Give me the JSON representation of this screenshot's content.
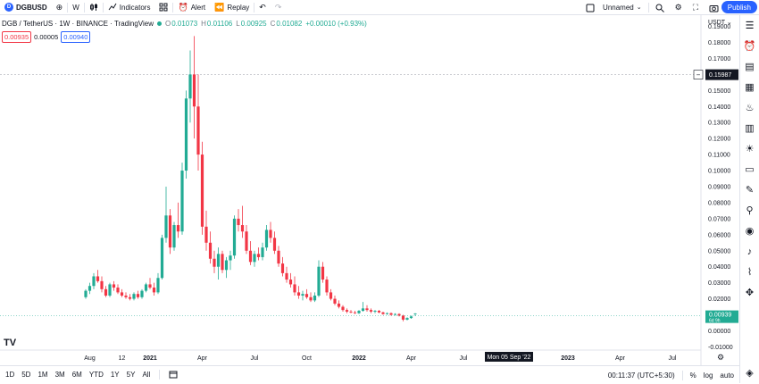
{
  "topbar": {
    "symbol": "DGBUSD",
    "symbol_logo": "D",
    "interval": "W",
    "indicators_label": "Indicators",
    "alert_label": "Alert",
    "replay_label": "Replay",
    "layout_name": "Unnamed",
    "publish_label": "Publish"
  },
  "legend": {
    "title": "DGB / TetherUS · 1W · BINANCE · TradingView",
    "o_label": "O",
    "o": "0.01073",
    "h_label": "H",
    "h": "0.01106",
    "l_label": "L",
    "l": "0.00925",
    "c_label": "C",
    "c": "0.01082",
    "change": "+0.00010 (+0.93%)"
  },
  "pricebox": {
    "sell": "0.00935",
    "spread": "0.00005",
    "buy": "0.00940"
  },
  "price_axis": {
    "currency": "USDT",
    "crosshair_price": "0.15987",
    "last_price": "0.00939",
    "last_price_countdown": "6d 9h"
  },
  "time_axis": {
    "crosshair_date": "Mon 05 Sep '22"
  },
  "bottombar": {
    "ranges": [
      "1D",
      "5D",
      "1M",
      "3M",
      "6M",
      "YTD",
      "1Y",
      "5Y",
      "All"
    ],
    "clock": "00:11:37 (UTC+5:30)",
    "percent_label": "%",
    "log_label": "log",
    "auto_label": "auto"
  },
  "colors": {
    "up": "#22ab94",
    "down": "#f23645",
    "accent": "#2962ff"
  },
  "chart_data": {
    "type": "candlestick",
    "y_ticks": [
      0.19,
      0.18,
      0.17,
      0.16,
      0.15,
      0.14,
      0.13,
      0.12,
      0.11,
      0.1,
      0.09,
      0.08,
      0.07,
      0.06,
      0.05,
      0.04,
      0.03,
      0.02,
      0.01,
      0.0,
      -0.01
    ],
    "y_tick_labels": [
      "0.19000",
      "0.18000",
      "0.17000",
      "0.16000",
      "0.15000",
      "0.14000",
      "0.13000",
      "0.12000",
      "0.11000",
      "0.10000",
      "0.09000",
      "0.08000",
      "0.07000",
      "0.06000",
      "0.05000",
      "0.04000",
      "0.03000",
      "0.02000",
      "0.01000",
      "0.00000",
      "-0.01000"
    ],
    "ylim": [
      -0.012,
      0.197
    ],
    "x_ticks": [
      {
        "label": "Aug",
        "index": 1
      },
      {
        "label": "12",
        "index": 9
      },
      {
        "label": "2021",
        "index": 16
      },
      {
        "label": "Apr",
        "index": 29
      },
      {
        "label": "Jul",
        "index": 42
      },
      {
        "label": "Oct",
        "index": 55
      },
      {
        "label": "2022",
        "index": 68
      },
      {
        "label": "Apr",
        "index": 81
      },
      {
        "label": "Jul",
        "index": 94
      },
      {
        "label": "2023",
        "index": 120
      },
      {
        "label": "Apr",
        "index": 133
      },
      {
        "label": "Jul",
        "index": 146
      }
    ],
    "candles": [
      [
        0.021,
        0.026,
        0.02,
        0.025
      ],
      [
        0.025,
        0.03,
        0.023,
        0.028
      ],
      [
        0.028,
        0.036,
        0.026,
        0.034
      ],
      [
        0.034,
        0.038,
        0.03,
        0.031
      ],
      [
        0.031,
        0.034,
        0.024,
        0.026
      ],
      [
        0.026,
        0.028,
        0.021,
        0.022
      ],
      [
        0.022,
        0.03,
        0.021,
        0.029
      ],
      [
        0.029,
        0.031,
        0.025,
        0.027
      ],
      [
        0.027,
        0.029,
        0.023,
        0.024
      ],
      [
        0.024,
        0.026,
        0.021,
        0.022
      ],
      [
        0.022,
        0.024,
        0.02,
        0.021
      ],
      [
        0.021,
        0.023,
        0.019,
        0.02
      ],
      [
        0.02,
        0.024,
        0.019,
        0.023
      ],
      [
        0.023,
        0.025,
        0.02,
        0.021
      ],
      [
        0.021,
        0.026,
        0.02,
        0.025
      ],
      [
        0.025,
        0.03,
        0.024,
        0.029
      ],
      [
        0.029,
        0.033,
        0.026,
        0.027
      ],
      [
        0.027,
        0.03,
        0.022,
        0.024
      ],
      [
        0.024,
        0.036,
        0.023,
        0.033
      ],
      [
        0.033,
        0.06,
        0.032,
        0.058
      ],
      [
        0.058,
        0.09,
        0.055,
        0.072
      ],
      [
        0.072,
        0.076,
        0.048,
        0.052
      ],
      [
        0.052,
        0.068,
        0.05,
        0.066
      ],
      [
        0.066,
        0.08,
        0.058,
        0.062
      ],
      [
        0.062,
        0.105,
        0.06,
        0.1
      ],
      [
        0.1,
        0.15,
        0.095,
        0.145
      ],
      [
        0.145,
        0.175,
        0.13,
        0.16
      ],
      [
        0.16,
        0.184,
        0.12,
        0.14
      ],
      [
        0.14,
        0.16,
        0.1,
        0.11
      ],
      [
        0.11,
        0.118,
        0.06,
        0.065
      ],
      [
        0.065,
        0.075,
        0.05,
        0.055
      ],
      [
        0.055,
        0.062,
        0.042,
        0.045
      ],
      [
        0.045,
        0.05,
        0.036,
        0.04
      ],
      [
        0.04,
        0.052,
        0.032,
        0.048
      ],
      [
        0.048,
        0.05,
        0.036,
        0.038
      ],
      [
        0.038,
        0.046,
        0.033,
        0.044
      ],
      [
        0.044,
        0.05,
        0.038,
        0.047
      ],
      [
        0.047,
        0.072,
        0.045,
        0.07
      ],
      [
        0.07,
        0.076,
        0.062,
        0.066
      ],
      [
        0.066,
        0.078,
        0.058,
        0.062
      ],
      [
        0.062,
        0.066,
        0.048,
        0.05
      ],
      [
        0.05,
        0.056,
        0.041,
        0.043
      ],
      [
        0.043,
        0.05,
        0.04,
        0.048
      ],
      [
        0.048,
        0.052,
        0.044,
        0.046
      ],
      [
        0.046,
        0.055,
        0.044,
        0.052
      ],
      [
        0.052,
        0.066,
        0.05,
        0.063
      ],
      [
        0.063,
        0.068,
        0.055,
        0.058
      ],
      [
        0.058,
        0.062,
        0.048,
        0.05
      ],
      [
        0.05,
        0.053,
        0.04,
        0.042
      ],
      [
        0.042,
        0.046,
        0.034,
        0.036
      ],
      [
        0.036,
        0.04,
        0.03,
        0.032
      ],
      [
        0.032,
        0.036,
        0.027,
        0.029
      ],
      [
        0.029,
        0.034,
        0.022,
        0.024
      ],
      [
        0.024,
        0.028,
        0.02,
        0.022
      ],
      [
        0.022,
        0.025,
        0.019,
        0.023
      ],
      [
        0.023,
        0.026,
        0.02,
        0.021
      ],
      [
        0.021,
        0.024,
        0.018,
        0.019
      ],
      [
        0.019,
        0.024,
        0.018,
        0.022
      ],
      [
        0.022,
        0.044,
        0.021,
        0.04
      ],
      [
        0.04,
        0.043,
        0.03,
        0.032
      ],
      [
        0.032,
        0.034,
        0.022,
        0.024
      ],
      [
        0.024,
        0.026,
        0.019,
        0.02
      ],
      [
        0.02,
        0.022,
        0.016,
        0.017
      ],
      [
        0.017,
        0.019,
        0.014,
        0.015
      ],
      [
        0.015,
        0.016,
        0.012,
        0.013
      ],
      [
        0.013,
        0.014,
        0.011,
        0.012
      ],
      [
        0.012,
        0.013,
        0.011,
        0.0115
      ],
      [
        0.0115,
        0.0125,
        0.0105,
        0.011
      ],
      [
        0.011,
        0.013,
        0.0105,
        0.0125
      ],
      [
        0.0125,
        0.018,
        0.012,
        0.014
      ],
      [
        0.014,
        0.016,
        0.012,
        0.013
      ],
      [
        0.013,
        0.014,
        0.011,
        0.012
      ],
      [
        0.012,
        0.013,
        0.011,
        0.0125
      ],
      [
        0.0125,
        0.013,
        0.011,
        0.0115
      ],
      [
        0.0115,
        0.012,
        0.01,
        0.0105
      ],
      [
        0.0105,
        0.0115,
        0.01,
        0.011
      ],
      [
        0.011,
        0.0115,
        0.0095,
        0.01
      ],
      [
        0.01,
        0.011,
        0.0095,
        0.0105
      ],
      [
        0.0105,
        0.011,
        0.009,
        0.0095
      ],
      [
        0.0095,
        0.01,
        0.006,
        0.007
      ],
      [
        0.007,
        0.0085,
        0.0065,
        0.008
      ],
      [
        0.008,
        0.0095,
        0.0075,
        0.009
      ],
      [
        0.01073,
        0.01106,
        0.00925,
        0.01082
      ]
    ]
  }
}
